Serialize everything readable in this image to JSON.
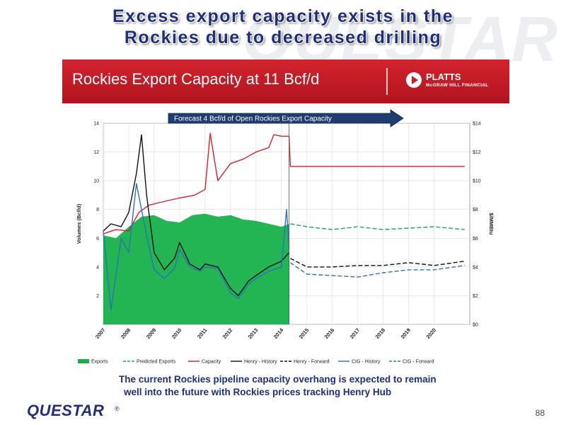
{
  "slide": {
    "title_line1": "Excess export capacity exists in the",
    "title_line2": "Rockies due to decreased drilling",
    "banner_title": "Rockies Export Capacity at 11 Bcf/d",
    "platts_name": "PLATTS",
    "platts_sub": "McGRAW HILL FINANCIAL",
    "caption_line1": "The current Rockies pipeline capacity overhang is expected to remain",
    "caption_line2": "well into the future with Rockies prices tracking Henry Hub",
    "logo": "QUESTAR",
    "logo_reg": "®",
    "page_number": "88",
    "watermark": "QUESTAR",
    "colors": {
      "title": "#1f2f7a",
      "banner": "#c81c26",
      "caption": "#1f2f7a"
    }
  },
  "chart_data": {
    "type": "line",
    "annotation": "Forecast 4 Bcf/d of Open Rockies Export Capacity",
    "ylabel_left": "Volumes (Bcf/d)",
    "ylabel_right": "$/MMBtu",
    "ylim_left": [
      0,
      14
    ],
    "ylim_right": [
      0,
      14
    ],
    "xlim": [
      2007,
      2021.4
    ],
    "y_ticks_left": [
      "",
      "2",
      "4",
      "6",
      "8",
      "10",
      "12",
      "14"
    ],
    "y_ticks_right": [
      "$0",
      "$2",
      "$4",
      "$6",
      "$8",
      "$10",
      "$12",
      "$14"
    ],
    "x_ticks": [
      "2007",
      "2008",
      "2009",
      "2010",
      "2011",
      "2012",
      "2013",
      "2014",
      "2015",
      "2016",
      "2017",
      "2018",
      "2019",
      "2020"
    ],
    "forecast_start": 2014.3,
    "legend": [
      {
        "name": "Exports",
        "key": "exports"
      },
      {
        "name": "Predicted Exports",
        "key": "predicted_exports"
      },
      {
        "name": "Capacity",
        "key": "capacity"
      },
      {
        "name": "Henry - History",
        "key": "henry_history"
      },
      {
        "name": "Henry - Forward",
        "key": "henry_forward"
      },
      {
        "name": "CIG - History",
        "key": "cig_history"
      },
      {
        "name": "CIG - Forward",
        "key": "cig_forward"
      }
    ],
    "series": [
      {
        "key": "exports",
        "axis": "left",
        "style": "area",
        "color": "#17b04a",
        "x": [
          2007,
          2007.5,
          2008,
          2008.5,
          2009,
          2009.5,
          2010,
          2010.5,
          2011,
          2011.5,
          2012,
          2012.5,
          2013,
          2013.5,
          2014,
          2014.3
        ],
        "y": [
          6.2,
          6.0,
          6.8,
          7.5,
          7.6,
          7.2,
          7.1,
          7.6,
          7.7,
          7.5,
          7.6,
          7.3,
          7.2,
          7.0,
          6.8,
          7.0
        ]
      },
      {
        "key": "predicted_exports",
        "axis": "left",
        "style": "dashed",
        "color": "#17b04a",
        "x": [
          2014.35,
          2015,
          2016,
          2017,
          2018,
          2019,
          2020,
          2021.2
        ],
        "y": [
          7.0,
          6.8,
          6.6,
          6.8,
          6.6,
          6.7,
          6.8,
          6.6
        ]
      },
      {
        "key": "capacity",
        "axis": "left",
        "style": "solid",
        "color": "#d9202a",
        "x": [
          2007,
          2007.5,
          2008,
          2008.4,
          2008.8,
          2009.5,
          2010,
          2010.6,
          2011,
          2011.2,
          2011.5,
          2012,
          2012.5,
          2013,
          2013.5,
          2013.7,
          2014,
          2014.3,
          2014.35,
          2021.2
        ],
        "y": [
          6.3,
          6.6,
          6.5,
          7.8,
          8.3,
          8.6,
          8.8,
          9.0,
          9.4,
          13.3,
          10.0,
          11.2,
          11.5,
          12.0,
          12.3,
          13.2,
          13.1,
          13.1,
          11.0,
          11.0
        ]
      },
      {
        "key": "henry_history",
        "axis": "right",
        "style": "solid",
        "color": "#111111",
        "x": [
          2007,
          2007.3,
          2007.7,
          2008,
          2008.3,
          2008.5,
          2008.7,
          2009,
          2009.4,
          2009.8,
          2010,
          2010.4,
          2010.8,
          2011,
          2011.5,
          2012,
          2012.3,
          2012.7,
          2013,
          2013.5,
          2014,
          2014.3
        ],
        "y": [
          6.5,
          7.0,
          6.8,
          7.8,
          10.5,
          13.2,
          9.0,
          5.0,
          3.8,
          4.6,
          5.7,
          4.2,
          3.8,
          4.2,
          4.0,
          2.5,
          2.0,
          3.0,
          3.4,
          4.0,
          4.4,
          5.0
        ]
      },
      {
        "key": "henry_forward",
        "axis": "right",
        "style": "dashed",
        "color": "#111111",
        "x": [
          2014.35,
          2015,
          2016,
          2017,
          2018,
          2019,
          2020,
          2021.2
        ],
        "y": [
          4.6,
          4.0,
          4.0,
          4.1,
          4.1,
          4.3,
          4.1,
          4.4
        ]
      },
      {
        "key": "cig_history",
        "axis": "right",
        "style": "solid",
        "color": "#2a73b8",
        "x": [
          2007,
          2007.3,
          2007.7,
          2008,
          2008.3,
          2008.5,
          2008.7,
          2009,
          2009.4,
          2009.8,
          2010,
          2010.4,
          2010.8,
          2011,
          2011.5,
          2012,
          2012.3,
          2012.7,
          2013,
          2013.5,
          2014,
          2014.2,
          2014.3
        ],
        "y": [
          6.5,
          1.0,
          6.0,
          5.0,
          9.8,
          8.0,
          6.2,
          3.8,
          3.2,
          3.9,
          5.2,
          4.0,
          3.7,
          4.0,
          3.9,
          2.2,
          1.8,
          2.8,
          3.2,
          3.7,
          4.0,
          8.0,
          5.3
        ]
      },
      {
        "key": "cig_forward",
        "axis": "right",
        "style": "dashed",
        "color": "#2a73b8",
        "x": [
          2014.35,
          2015,
          2016,
          2017,
          2018,
          2019,
          2020,
          2021.2
        ],
        "y": [
          4.3,
          3.5,
          3.4,
          3.3,
          3.6,
          3.8,
          3.8,
          4.1
        ]
      }
    ]
  }
}
